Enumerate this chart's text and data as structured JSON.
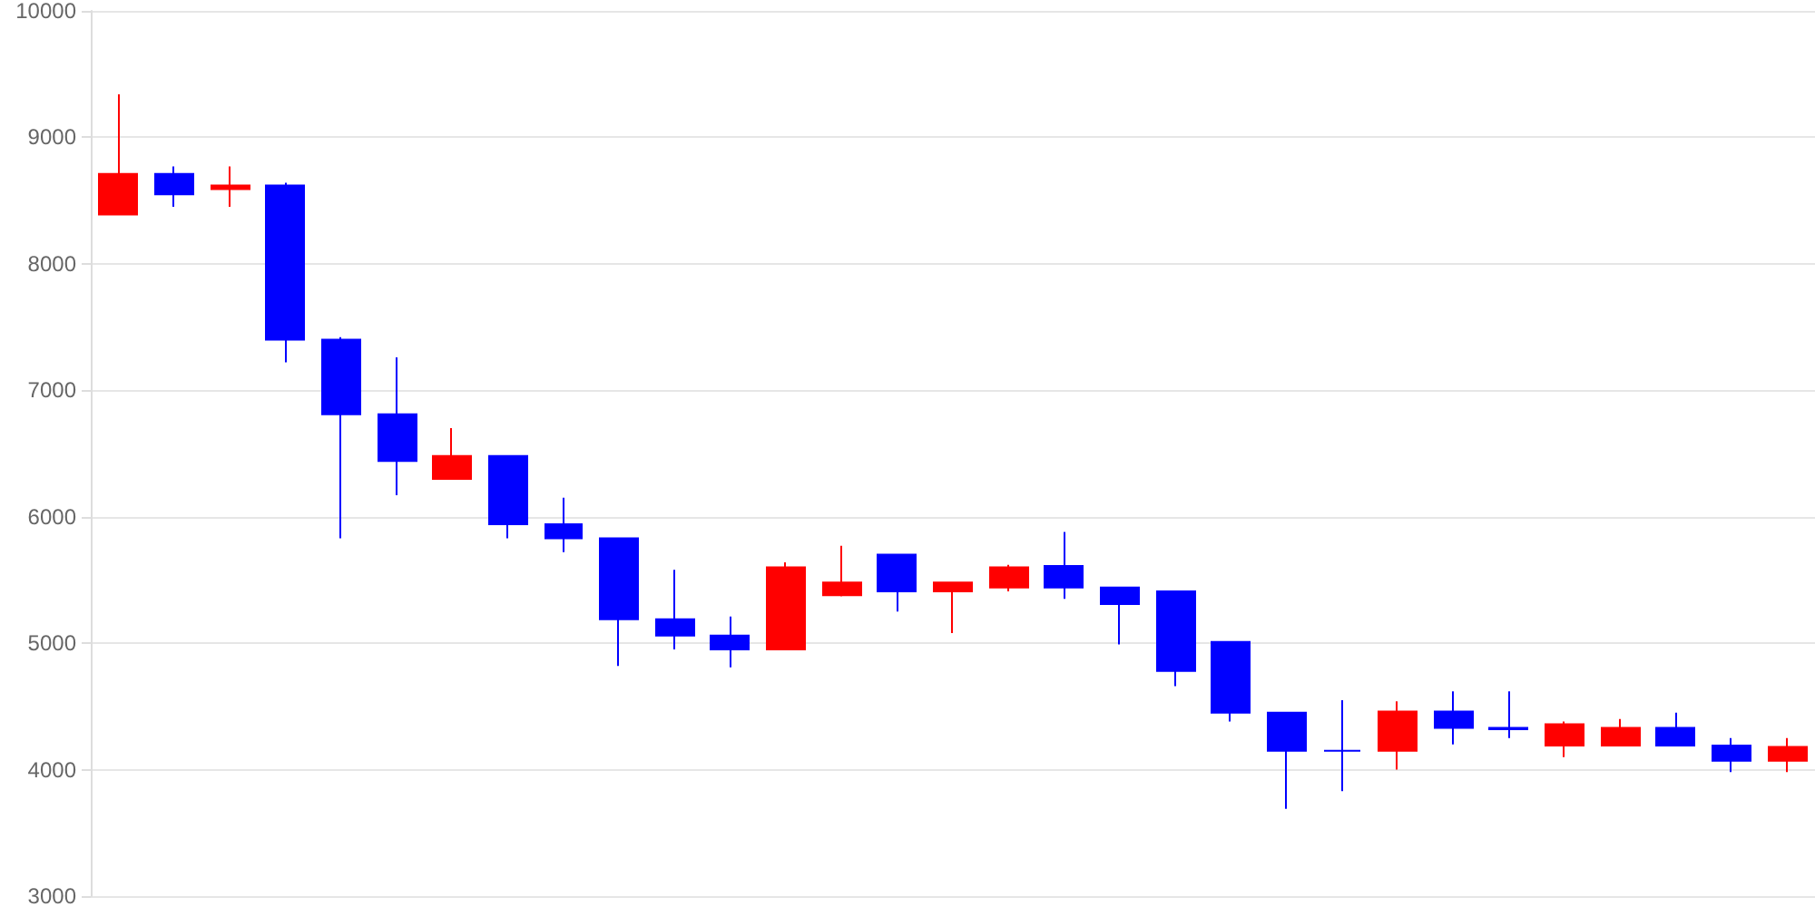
{
  "chart_data": {
    "type": "candlestick",
    "categories": [
      null,
      null,
      null,
      null,
      null,
      null,
      null,
      null,
      null,
      null,
      null,
      null,
      null,
      null,
      null,
      null,
      null,
      null,
      null,
      null,
      null,
      null,
      null,
      null,
      null,
      null,
      null,
      null,
      null,
      null,
      null
    ],
    "ohlc": [
      [
        8390,
        9340,
        8390,
        8710
      ],
      [
        8710,
        8770,
        8450,
        8550
      ],
      [
        8590,
        8770,
        8450,
        8620
      ],
      [
        8620,
        8640,
        7220,
        7400
      ],
      [
        7400,
        7420,
        5830,
        6810
      ],
      [
        6810,
        7260,
        6170,
        6440
      ],
      [
        6300,
        6700,
        6300,
        6480
      ],
      [
        6480,
        6480,
        5830,
        5940
      ],
      [
        5940,
        6150,
        5720,
        5830
      ],
      [
        5830,
        5830,
        4820,
        5190
      ],
      [
        5190,
        5580,
        4950,
        5060
      ],
      [
        5060,
        5210,
        4810,
        4950
      ],
      [
        4950,
        5640,
        4950,
        5600
      ],
      [
        5380,
        5770,
        5370,
        5480
      ],
      [
        5700,
        5700,
        5250,
        5410
      ],
      [
        5410,
        5480,
        5080,
        5480
      ],
      [
        5440,
        5620,
        5410,
        5600
      ],
      [
        5610,
        5880,
        5350,
        5440
      ],
      [
        5440,
        5440,
        4990,
        5310
      ],
      [
        5410,
        5410,
        4660,
        4780
      ],
      [
        5010,
        5010,
        4380,
        4450
      ],
      [
        4450,
        4450,
        3690,
        4150
      ],
      [
        4150,
        4550,
        3830,
        4150
      ],
      [
        4150,
        4540,
        4000,
        4460
      ],
      [
        4460,
        4620,
        4200,
        4330
      ],
      [
        4330,
        4620,
        4250,
        4320
      ],
      [
        4190,
        4380,
        4100,
        4360
      ],
      [
        4190,
        4400,
        4190,
        4330
      ],
      [
        4330,
        4450,
        4190,
        4190
      ],
      [
        4190,
        4250,
        3980,
        4070
      ],
      [
        4070,
        4250,
        3980,
        4180
      ]
    ],
    "colors": [
      "#ff0000",
      "#0000ff",
      "#ff0000",
      "#0000ff",
      "#0000ff",
      "#0000ff",
      "#ff0000",
      "#0000ff",
      "#0000ff",
      "#0000ff",
      "#0000ff",
      "#0000ff",
      "#ff0000",
      "#ff0000",
      "#0000ff",
      "#ff0000",
      "#ff0000",
      "#0000ff",
      "#0000ff",
      "#0000ff",
      "#0000ff",
      "#0000ff",
      "#0000ff",
      "#ff0000",
      "#0000ff",
      "#0000ff",
      "#ff0000",
      "#ff0000",
      "#0000ff",
      "#0000ff",
      "#ff0000"
    ],
    "ylim": [
      3000,
      10000
    ],
    "yticks": [
      3000,
      4000,
      5000,
      6000,
      7000,
      8000,
      9000,
      10000
    ],
    "grid": "y",
    "tick_labels": "y"
  }
}
